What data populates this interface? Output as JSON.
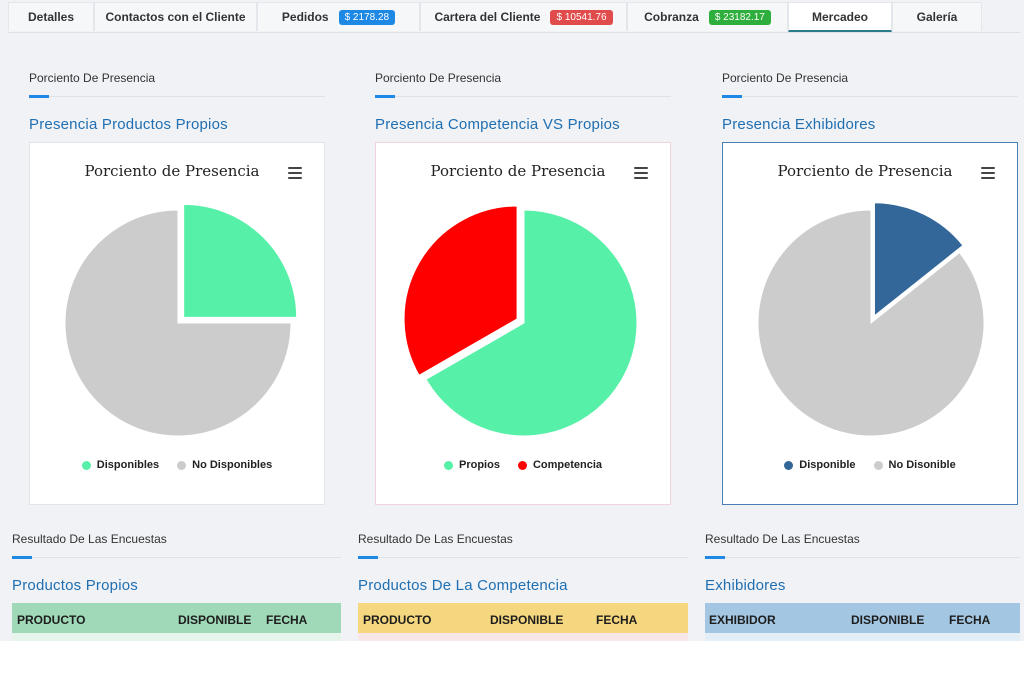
{
  "tabs": [
    {
      "label": "Detalles"
    },
    {
      "label": "Contactos con el Cliente"
    },
    {
      "label": "Pedidos",
      "badge": "$ 2178.28",
      "badge_color": "#1e88e5"
    },
    {
      "label": "Cartera del Cliente",
      "badge": "$ 10541.76",
      "badge_color": "#e04b4b"
    },
    {
      "label": "Cobranza",
      "badge": "$ 23182.17",
      "badge_color": "#2eae3c"
    },
    {
      "label": "Mercadeo",
      "active": true
    },
    {
      "label": "Galería"
    }
  ],
  "presence_sections": [
    {
      "section_title": "Porciento De Presencia",
      "subtitle": "Presencia Productos Propios"
    },
    {
      "section_title": "Porciento De Presencia",
      "subtitle": "Presencia Competencia VS Propios"
    },
    {
      "section_title": "Porciento De Presencia",
      "subtitle": "Presencia Exhibidores"
    }
  ],
  "chart_data": [
    {
      "type": "pie",
      "title": "Porciento de Presencia",
      "series": [
        {
          "name": "Disponibles",
          "value": 25,
          "color": "#57f0a8",
          "sliced": true
        },
        {
          "name": "No Disponibles",
          "value": 75,
          "color": "#cccccc",
          "sliced": false
        }
      ],
      "legend": "bottom"
    },
    {
      "type": "pie",
      "title": "Porciento de Presencia",
      "series": [
        {
          "name": "Propios",
          "value": 66.7,
          "color": "#57f0a8",
          "sliced": false
        },
        {
          "name": "Competencia",
          "value": 33.3,
          "color": "#ff0000",
          "sliced": true
        }
      ],
      "legend": "bottom"
    },
    {
      "type": "pie",
      "title": "Porciento de Presencia",
      "series": [
        {
          "name": "Disponible",
          "value": 14.3,
          "color": "#336699",
          "sliced": true
        },
        {
          "name": "No Disonible",
          "value": 85.7,
          "color": "#cccccc",
          "sliced": false
        }
      ],
      "legend": "bottom"
    }
  ],
  "survey_sections": [
    {
      "section_title": "Resultado De Las Encuestas",
      "subtitle": "Productos Propios",
      "columns": [
        "PRODUCTO",
        "DISPONIBLE",
        "FECHA"
      ],
      "header_color": "#9fd9b7",
      "row_color": "#e6f4ec"
    },
    {
      "section_title": "Resultado De Las Encuestas",
      "subtitle": "Productos De La Competencia",
      "columns": [
        "PRODUCTO",
        "DISPONIBLE",
        "FECHA"
      ],
      "header_color": "#f5d77f",
      "row_color": "#f7e7e9"
    },
    {
      "section_title": "Resultado De Las Encuestas",
      "subtitle": "Exhibidores",
      "columns": [
        "EXHIBIDOR",
        "DISPONIBLE",
        "FECHA"
      ],
      "header_color": "#a3c7e3",
      "row_color": "#e4eef7"
    }
  ]
}
